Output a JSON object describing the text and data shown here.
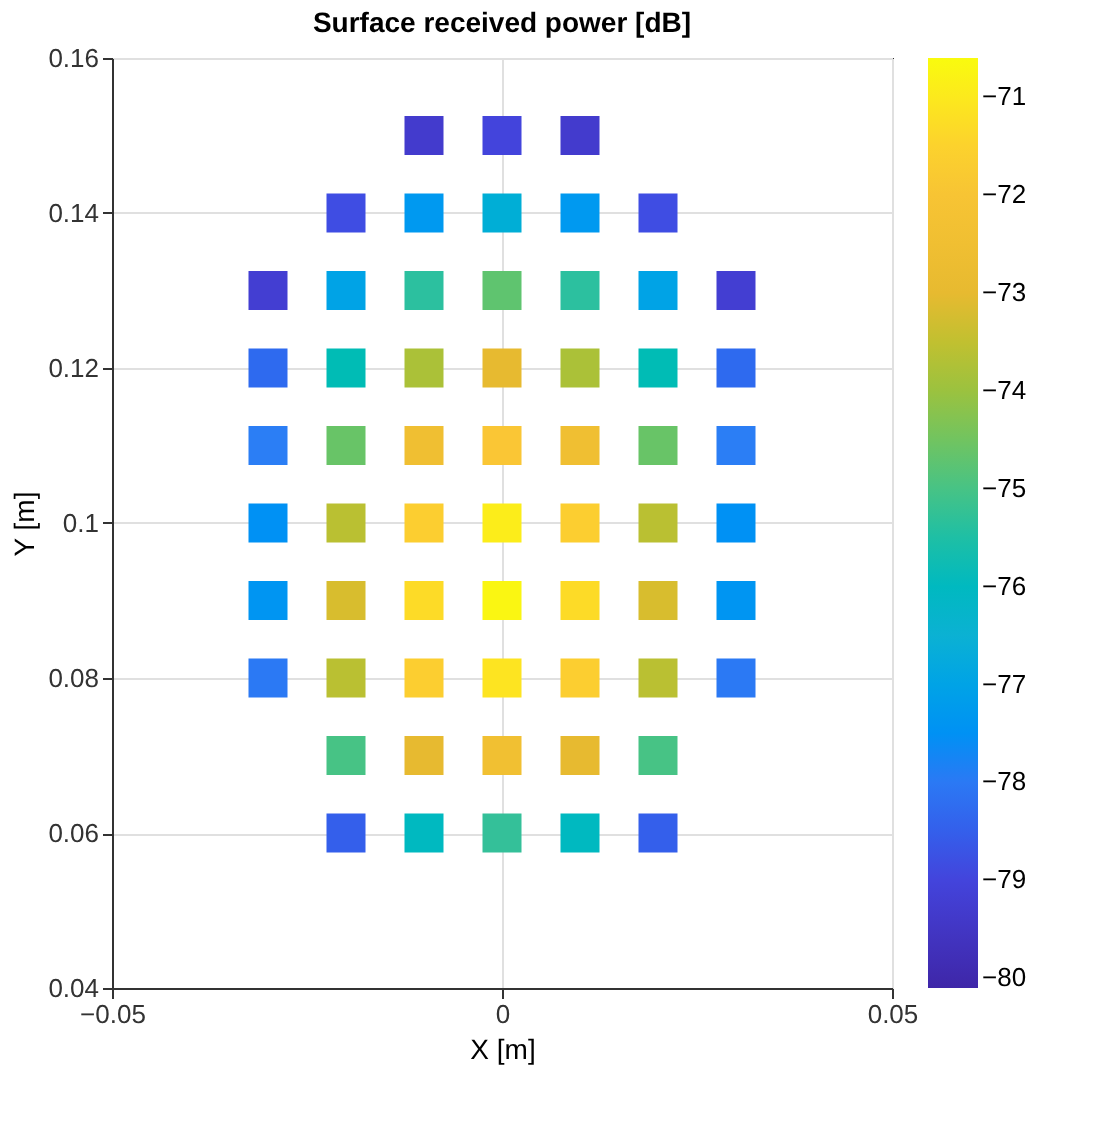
{
  "chart_data": {
    "type": "scatter",
    "title": "Surface received power [dB]",
    "xlabel": "X [m]",
    "ylabel": "Y [m]",
    "marker": "square",
    "grid": true,
    "x": [
      -0.02,
      -0.01,
      0,
      0.01,
      0.02,
      -0.02,
      -0.01,
      0,
      0.01,
      0.02,
      -0.03,
      -0.02,
      -0.01,
      0,
      0.01,
      0.02,
      0.03,
      -0.03,
      -0.02,
      -0.01,
      0,
      0.01,
      0.02,
      0.03,
      -0.03,
      -0.02,
      -0.01,
      0,
      0.01,
      0.02,
      0.03,
      -0.03,
      -0.02,
      -0.01,
      0,
      0.01,
      0.02,
      0.03,
      -0.03,
      -0.02,
      -0.01,
      0,
      0.01,
      0.02,
      0.03,
      -0.03,
      -0.02,
      -0.01,
      0,
      0.01,
      0.02,
      0.03,
      -0.02,
      -0.01,
      0,
      0.01,
      0.02,
      -0.01,
      0,
      0.01
    ],
    "values": [
      0.06,
      0.06,
      0.06,
      0.06,
      0.06,
      0.07,
      0.07,
      0.07,
      0.07,
      0.07,
      0.08,
      0.08,
      0.08,
      0.08,
      0.08,
      0.08,
      0.08,
      0.09,
      0.09,
      0.09,
      0.09,
      0.09,
      0.09,
      0.09,
      0.1,
      0.1,
      0.1,
      0.1,
      0.1,
      0.1,
      0.1,
      0.11,
      0.11,
      0.11,
      0.11,
      0.11,
      0.11,
      0.11,
      0.12,
      0.12,
      0.12,
      0.12,
      0.12,
      0.12,
      0.12,
      0.13,
      0.13,
      0.13,
      0.13,
      0.13,
      0.13,
      0.13,
      0.14,
      0.14,
      0.14,
      0.14,
      0.14,
      0.15,
      0.15,
      0.15
    ],
    "cvalues": [
      -78.5,
      -76.0,
      -75.3,
      -76.0,
      -78.5,
      -75.0,
      -73.0,
      -72.4,
      -73.0,
      -75.0,
      -78.0,
      -73.6,
      -71.6,
      -71.1,
      -71.6,
      -73.6,
      -78.0,
      -77.4,
      -73.2,
      -71.3,
      -70.7,
      -71.3,
      -73.2,
      -77.4,
      -77.5,
      -73.6,
      -71.6,
      -70.9,
      -71.6,
      -73.6,
      -77.5,
      -77.9,
      -74.6,
      -72.5,
      -71.8,
      -72.5,
      -74.6,
      -77.9,
      -78.3,
      -75.8,
      -73.8,
      -73.0,
      -73.8,
      -75.8,
      -78.3,
      -79.2,
      -77.0,
      -75.4,
      -74.7,
      -75.4,
      -77.0,
      -79.2,
      -78.8,
      -77.3,
      -76.6,
      -77.3,
      -78.8,
      -79.3,
      -79.0,
      -79.3
    ],
    "xlim": [
      -0.05,
      0.05
    ],
    "xticks": [
      -0.05,
      0,
      0.05
    ],
    "ylim": [
      0.04,
      0.16
    ],
    "yticks": [
      0.04,
      0.06,
      0.08,
      0.1,
      0.12,
      0.14,
      0.16
    ],
    "clim": [
      -80.1,
      -70.6
    ],
    "cticks": [
      -80,
      -79,
      -78,
      -77,
      -76,
      -75,
      -74,
      -73,
      -72,
      -71
    ]
  }
}
